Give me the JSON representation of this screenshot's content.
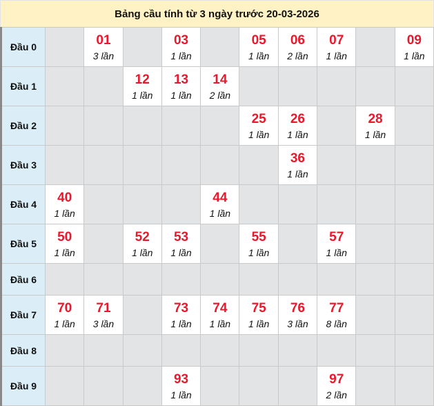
{
  "title": "Bảng cầu tính từ 3 ngày trước 20-03-2026",
  "colors": {
    "number": "#e8192c",
    "title_bg": "#fff2c4",
    "head_bg": "#dbeef8",
    "empty_bg": "#e3e4e6"
  },
  "rows": [
    {
      "label": "Đầu 0",
      "cells": [
        null,
        {
          "num": "01",
          "count": "3 lần"
        },
        null,
        {
          "num": "03",
          "count": "1 lần"
        },
        null,
        {
          "num": "05",
          "count": "1 lần"
        },
        {
          "num": "06",
          "count": "2 lần"
        },
        {
          "num": "07",
          "count": "1 lần"
        },
        null,
        {
          "num": "09",
          "count": "1 lần"
        }
      ]
    },
    {
      "label": "Đầu 1",
      "cells": [
        null,
        null,
        {
          "num": "12",
          "count": "1 lần"
        },
        {
          "num": "13",
          "count": "1 lần"
        },
        {
          "num": "14",
          "count": "2 lần"
        },
        null,
        null,
        null,
        null,
        null
      ]
    },
    {
      "label": "Đầu 2",
      "cells": [
        null,
        null,
        null,
        null,
        null,
        {
          "num": "25",
          "count": "1 lần"
        },
        {
          "num": "26",
          "count": "1 lần"
        },
        null,
        {
          "num": "28",
          "count": "1 lần"
        },
        null
      ]
    },
    {
      "label": "Đầu 3",
      "cells": [
        null,
        null,
        null,
        null,
        null,
        null,
        {
          "num": "36",
          "count": "1 lần"
        },
        null,
        null,
        null
      ]
    },
    {
      "label": "Đầu 4",
      "cells": [
        {
          "num": "40",
          "count": "1 lần"
        },
        null,
        null,
        null,
        {
          "num": "44",
          "count": "1 lần"
        },
        null,
        null,
        null,
        null,
        null
      ]
    },
    {
      "label": "Đầu 5",
      "cells": [
        {
          "num": "50",
          "count": "1 lần"
        },
        null,
        {
          "num": "52",
          "count": "1 lần"
        },
        {
          "num": "53",
          "count": "1 lần"
        },
        null,
        {
          "num": "55",
          "count": "1 lần"
        },
        null,
        {
          "num": "57",
          "count": "1 lần"
        },
        null,
        null
      ]
    },
    {
      "label": "Đầu 6",
      "cells": [
        null,
        null,
        null,
        null,
        null,
        null,
        null,
        null,
        null,
        null
      ]
    },
    {
      "label": "Đầu 7",
      "cells": [
        {
          "num": "70",
          "count": "1 lần"
        },
        {
          "num": "71",
          "count": "3 lần"
        },
        null,
        {
          "num": "73",
          "count": "1 lần"
        },
        {
          "num": "74",
          "count": "1 lần"
        },
        {
          "num": "75",
          "count": "1 lần"
        },
        {
          "num": "76",
          "count": "3 lần"
        },
        {
          "num": "77",
          "count": "8 lần"
        },
        null,
        null
      ]
    },
    {
      "label": "Đầu 8",
      "cells": [
        null,
        null,
        null,
        null,
        null,
        null,
        null,
        null,
        null,
        null
      ]
    },
    {
      "label": "Đầu 9",
      "cells": [
        null,
        null,
        null,
        {
          "num": "93",
          "count": "1 lần"
        },
        null,
        null,
        null,
        {
          "num": "97",
          "count": "2 lần"
        },
        null,
        null
      ]
    }
  ]
}
